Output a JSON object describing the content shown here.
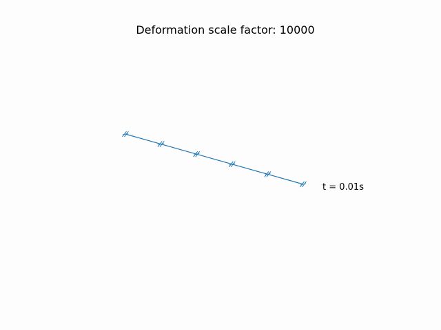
{
  "chart_data": {
    "type": "line",
    "title": "Deformation scale factor: 10000",
    "annotation": "t = 0.01s",
    "axes_visible": false,
    "grid": false,
    "x": [
      0,
      1,
      2,
      3,
      4,
      5
    ],
    "series": [
      {
        "values": [
          5.0,
          4.0,
          3.0,
          2.0,
          1.0,
          0.0
        ],
        "color": "#1f77b4"
      }
    ],
    "xlim": [
      0,
      5
    ],
    "ylim": [
      0,
      5
    ],
    "node_marker": "support-glyph"
  }
}
